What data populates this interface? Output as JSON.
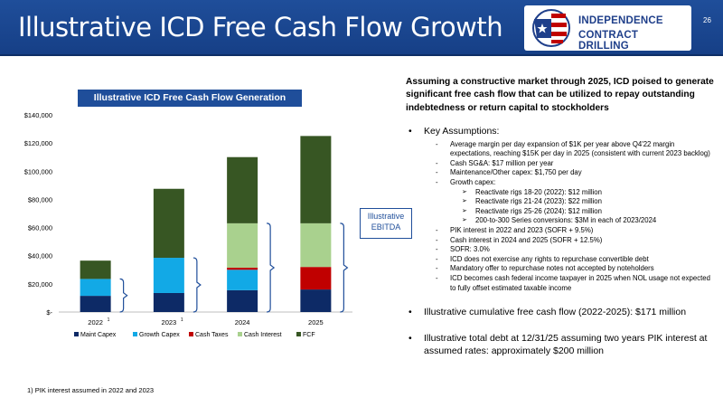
{
  "header": {
    "title": "Illustrative ICD Free Cash Flow Growth",
    "logo_line1": "INDEPENDENCE",
    "logo_line2": "CONTRACT DRILLING",
    "page_number": "26"
  },
  "colors": {
    "header_bg": "#1f4e9a",
    "maint_capex": "#0d2a66",
    "growth_capex": "#12a9e6",
    "cash_taxes": "#c00000",
    "cash_interest": "#a9d18e",
    "fcf": "#375623"
  },
  "chart_data": {
    "type": "bar",
    "stacked": true,
    "title": "Illustrative ICD Free Cash Flow Generation ($000s)",
    "categories": [
      "2022",
      "2023",
      "2024",
      "2025"
    ],
    "category_superscripts": [
      "1",
      "1",
      "",
      ""
    ],
    "series": [
      {
        "name": "Maint Capex",
        "values": [
          11500,
          13500,
          15500,
          16000
        ]
      },
      {
        "name": "Growth Capex",
        "values": [
          12000,
          25000,
          14500,
          0
        ]
      },
      {
        "name": "Cash Taxes",
        "values": [
          0,
          0,
          1500,
          16000
        ]
      },
      {
        "name": "Cash Interest",
        "values": [
          0,
          0,
          31500,
          31000
        ]
      },
      {
        "name": "FCF",
        "values": [
          13000,
          49000,
          47000,
          62000
        ]
      }
    ],
    "ylim": [
      0,
      140000
    ],
    "yticks": [
      0,
      20000,
      40000,
      60000,
      80000,
      100000,
      120000,
      140000
    ],
    "ytick_labels": [
      "$-",
      "$20,000",
      "$40,000",
      "$60,000",
      "$80,000",
      "$100,000",
      "$120,000",
      "$140,000"
    ],
    "legend_position": "bottom",
    "annotation": "Illustrative EBITDA"
  },
  "footnote": "1) PIK interest assumed in 2022 and 2023",
  "right_panel": {
    "headline": "Assuming a constructive market through 2025, ICD poised to generate significant free cash flow that can be utilized to repay outstanding indebtedness or return capital to stockholders",
    "key_assumptions_label": "Key Assumptions:",
    "assumptions": [
      {
        "text": "Average margin per day expansion of $1K per year above Q4'22 margin expectations, reaching $15K per day in 2025 (consistent with current 2023 backlog)",
        "subs": []
      },
      {
        "text": "Cash SG&A:  $17 million per year",
        "subs": []
      },
      {
        "text": "Maintenance/Other capex:  $1,750 per day",
        "subs": []
      },
      {
        "text": "Growth capex:",
        "subs": [
          "Reactivate rigs 18-20 (2022):  $12 million",
          "Reactivate rigs 21-24 (2023):  $22 million",
          "Reactivate rigs 25-26 (2024):  $12 million",
          "200-to-300 Series conversions:  $3M in each of 2023/2024"
        ]
      },
      {
        "text": "PIK interest in 2022 and 2023 (SOFR + 9.5%)",
        "subs": []
      },
      {
        "text": "Cash interest in 2024 and 2025 (SOFR + 12.5%)",
        "subs": []
      },
      {
        "text": "SOFR:  3.0%",
        "subs": []
      },
      {
        "text": "ICD does not exercise any rights to repurchase convertible debt",
        "subs": []
      },
      {
        "text": "Mandatory offer to repurchase notes not accepted by noteholders",
        "subs": []
      },
      {
        "text": "ICD becomes cash federal income taxpayer in 2025 when NOL usage not expected to fully offset estimated taxable income",
        "subs": []
      }
    ],
    "bullet_fcf": "Illustrative cumulative free cash flow (2022-2025):  $171 million",
    "bullet_debt": "Illustrative total debt at 12/31/25 assuming two years PIK interest at assumed rates:  approximately $200 million"
  }
}
